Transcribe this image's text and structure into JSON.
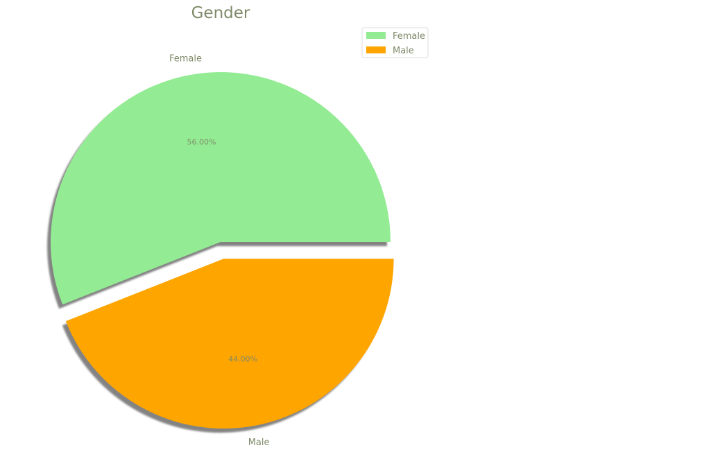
{
  "chart_data": {
    "type": "pie",
    "title": "Gender",
    "categories": [
      "Female",
      "Male"
    ],
    "values": [
      56.0,
      44.0
    ],
    "percent_labels": [
      "56.00%",
      "44.00%"
    ],
    "colors": [
      "#93ec93",
      "#ffa500"
    ],
    "explode": [
      0,
      0.1
    ],
    "shadow": true,
    "legend": {
      "placement": "top-right",
      "entries": [
        "Female",
        "Male"
      ]
    }
  }
}
